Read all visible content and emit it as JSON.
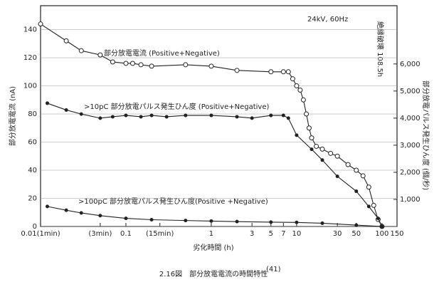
{
  "chart_data": {
    "type": "line",
    "title": "2.16図　部分放電電流の時間特性",
    "title_ref": "(41)",
    "x_label": "劣化時間 (h)",
    "y_label": "部分放電電流 (nA)",
    "y2_label": "部分放電パルス発生ひん度 (個/秒)",
    "log_x": true,
    "xlim": [
      0.01,
      150
    ],
    "xticks": [
      {
        "value": 0.01,
        "label": "0.01(1min)"
      },
      {
        "value": 0.05,
        "label": "(3min)"
      },
      0.1,
      {
        "value": 0.25,
        "label": "(15min)"
      },
      1,
      3,
      5,
      7,
      10,
      30,
      50,
      100,
      150
    ],
    "ylim": [
      0,
      157
    ],
    "yticks": [
      0,
      20,
      40,
      60,
      80,
      100,
      120,
      140
    ],
    "y2lim": [
      0,
      8150
    ],
    "y2ticks": [
      {
        "value": 1000,
        "label": "1,000"
      },
      {
        "value": 2000,
        "label": "2,000"
      },
      {
        "value": 3000,
        "label": "3,000"
      },
      {
        "value": 4000,
        "label": "4,000"
      },
      {
        "value": 5000,
        "label": "5,000"
      },
      {
        "value": 6000,
        "label": "6,000"
      }
    ],
    "annotations": [
      "24kV, 60Hz",
      "絶縁破壊 108.5h"
    ],
    "series": [
      {
        "name": "部分放電電流 (Positive+Negative)",
        "color": "#222",
        "marker": "open",
        "x": [
          0.01,
          0.02,
          0.03,
          0.05,
          0.07,
          0.1,
          0.12,
          0.15,
          0.2,
          0.5,
          1,
          2,
          5,
          7,
          8,
          9,
          10,
          11,
          12,
          13,
          14,
          15,
          17,
          20,
          25,
          30,
          40,
          50,
          60,
          70,
          80,
          90,
          100
        ],
        "values": [
          144,
          132,
          125,
          122,
          117,
          116,
          116,
          115,
          114,
          115,
          114,
          111,
          110,
          110,
          110,
          105,
          100,
          97,
          90,
          80,
          70,
          63,
          57,
          55,
          52,
          50,
          44,
          40,
          36,
          28,
          15,
          5,
          0
        ]
      },
      {
        "name": ">10pC 部分放電パルス発生ひん度 (Positive+Negative)",
        "color": "#222",
        "marker": "filled",
        "axis": "y2",
        "x": [
          0.012,
          0.02,
          0.03,
          0.05,
          0.07,
          0.1,
          0.15,
          0.2,
          0.3,
          0.5,
          1,
          2,
          3,
          5,
          7,
          8,
          10,
          15,
          20,
          30,
          50,
          70,
          90,
          100
        ],
        "values": [
          4550,
          4300,
          4150,
          4000,
          4050,
          4100,
          4050,
          4100,
          4050,
          4100,
          4100,
          4050,
          4000,
          4100,
          4100,
          4000,
          3370,
          2850,
          2450,
          1850,
          1300,
          740,
          300,
          0
        ]
      },
      {
        "name": ">100pC 部分放電パルス発生ひん度(Positive +Negative)",
        "color": "#222",
        "marker": "filled",
        "axis": "y2",
        "x": [
          0.012,
          0.02,
          0.03,
          0.05,
          0.1,
          0.2,
          0.5,
          1,
          2,
          5,
          10,
          20,
          50,
          100
        ],
        "values": [
          740,
          600,
          500,
          400,
          300,
          250,
          220,
          200,
          180,
          160,
          150,
          120,
          50,
          0
        ]
      }
    ]
  }
}
